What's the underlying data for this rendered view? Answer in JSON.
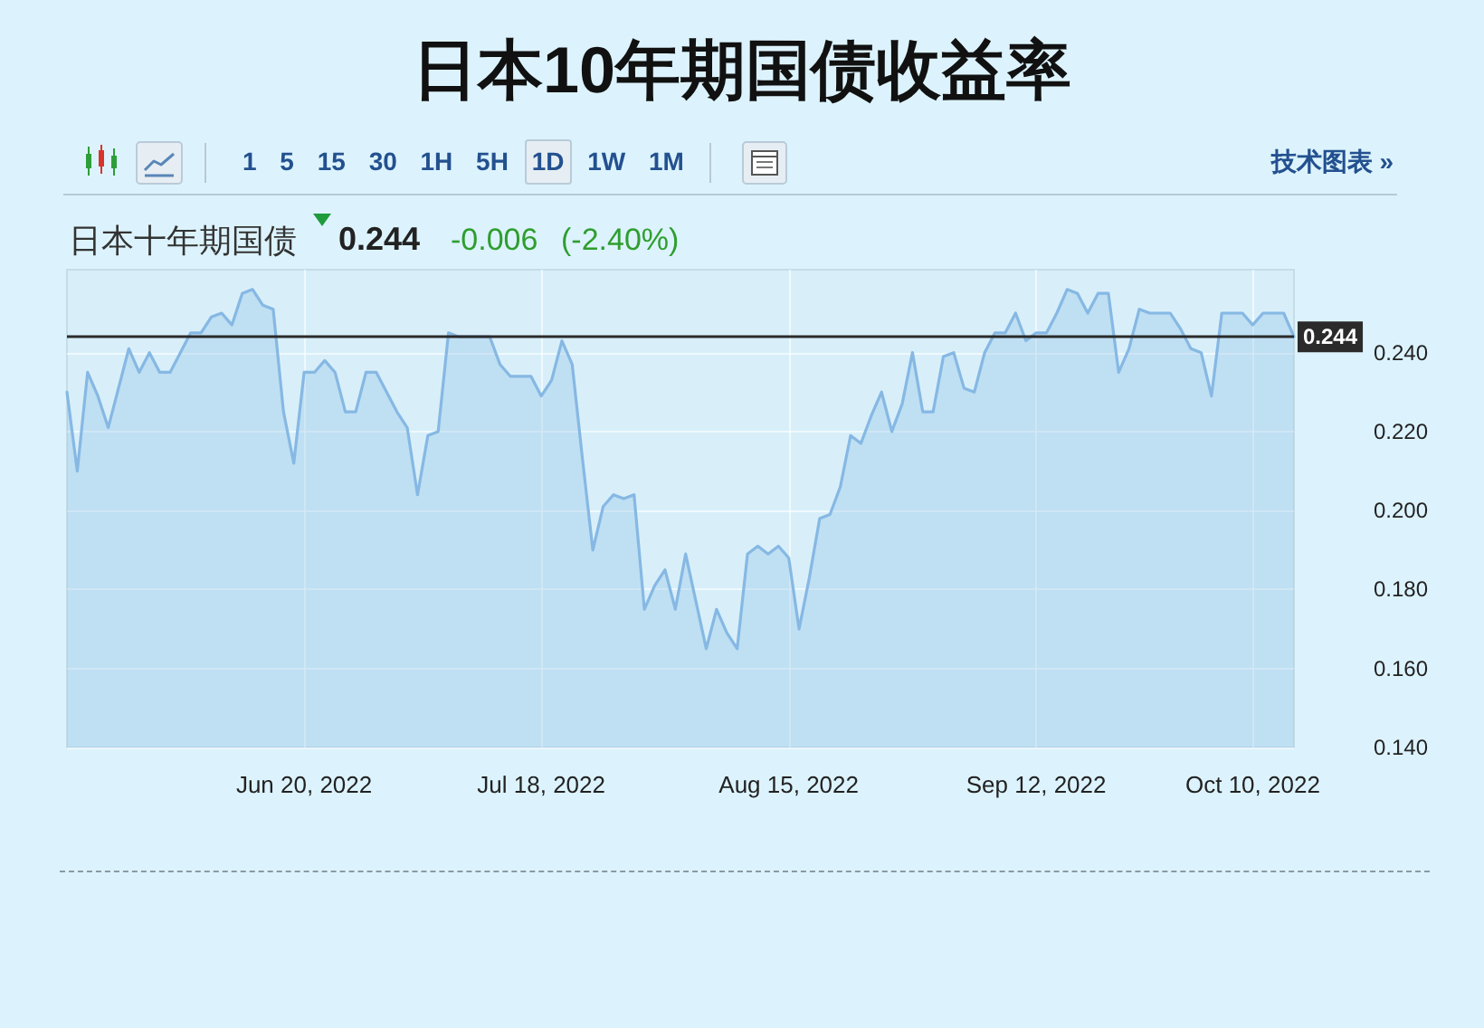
{
  "chart_data": {
    "type": "area",
    "title": "日本10年期国债收益率",
    "subtitle": "日本十年期国债",
    "annotations": [
      "1 5 15 30 1H 5H 1D 1W 1M",
      "技术图表 »",
      "0.244",
      "-0.006",
      "(-2.40%)"
    ],
    "categories": [
      null,
      null,
      null,
      null,
      null,
      null,
      null,
      null,
      null,
      null,
      null,
      null,
      null,
      null,
      null,
      null,
      null,
      null,
      null,
      null,
      null,
      null,
      null,
      "Jun 20, 2022",
      null,
      null,
      null,
      null,
      null,
      null,
      null,
      null,
      null,
      null,
      null,
      null,
      null,
      null,
      null,
      null,
      null,
      null,
      null,
      null,
      null,
      null,
      "Jul 18, 2022",
      null,
      null,
      null,
      null,
      null,
      null,
      null,
      null,
      null,
      null,
      null,
      null,
      null,
      null,
      null,
      null,
      null,
      null,
      null,
      null,
      null,
      null,
      null,
      "Aug 15, 2022",
      null,
      null,
      null,
      null,
      null,
      null,
      null,
      null,
      null,
      null,
      null,
      null,
      null,
      null,
      null,
      null,
      null,
      null,
      null,
      null,
      null,
      null,
      null,
      "Sep 12, 2022",
      null,
      null,
      null,
      null,
      null,
      null,
      null,
      null,
      null,
      null,
      null,
      null,
      null,
      null,
      null,
      null,
      null,
      null,
      null,
      null,
      "Oct 10, 2022",
      null,
      null,
      null,
      null
    ],
    "values": [
      0.23,
      0.21,
      0.235,
      0.229,
      0.221,
      0.231,
      0.241,
      0.235,
      0.24,
      0.235,
      0.235,
      0.24,
      0.245,
      0.245,
      0.249,
      0.25,
      0.247,
      0.255,
      0.256,
      0.252,
      0.251,
      0.225,
      0.212,
      0.235,
      0.235,
      0.238,
      0.235,
      0.225,
      0.225,
      0.235,
      0.235,
      0.23,
      0.225,
      0.221,
      0.204,
      0.219,
      0.22,
      0.245,
      0.244,
      0.244,
      0.244,
      0.244,
      0.237,
      0.234,
      0.234,
      0.234,
      0.229,
      0.233,
      0.243,
      0.237,
      0.213,
      0.19,
      0.201,
      0.204,
      0.203,
      0.204,
      0.175,
      0.181,
      0.185,
      0.175,
      0.189,
      0.177,
      0.165,
      0.175,
      0.169,
      0.165,
      0.189,
      0.191,
      0.189,
      0.191,
      0.188,
      0.17,
      0.183,
      0.198,
      0.199,
      0.206,
      0.219,
      0.217,
      0.224,
      0.23,
      0.22,
      0.227,
      0.24,
      0.225,
      0.225,
      0.239,
      0.24,
      0.231,
      0.23,
      0.24,
      0.245,
      0.245,
      0.25,
      0.243,
      0.245,
      0.245,
      0.25,
      0.256,
      0.255,
      0.25,
      0.255,
      0.255,
      0.235,
      0.241,
      0.251,
      0.25,
      0.25,
      0.25,
      0.246,
      0.241,
      0.24,
      0.229,
      0.25,
      0.25,
      0.25,
      0.247,
      0.25,
      0.25,
      0.25,
      0.244
    ],
    "color": "#86b8e3",
    "ylim": [
      0.14,
      0.261
    ],
    "yticks": [
      {
        "value": 0.14,
        "label": "0.140"
      },
      {
        "value": 0.16,
        "label": "0.160"
      },
      {
        "value": 0.18,
        "label": "0.180"
      },
      {
        "value": 0.2,
        "label": "0.200"
      },
      {
        "value": 0.22,
        "label": "0.220"
      },
      {
        "value": 0.24,
        "label": "0.240"
      }
    ],
    "grid": true,
    "marker": "none",
    "ref_lines": [
      {
        "axis": "y",
        "value": 0.244,
        "label": "0.244",
        "color": "#2b2b2b"
      }
    ]
  }
}
